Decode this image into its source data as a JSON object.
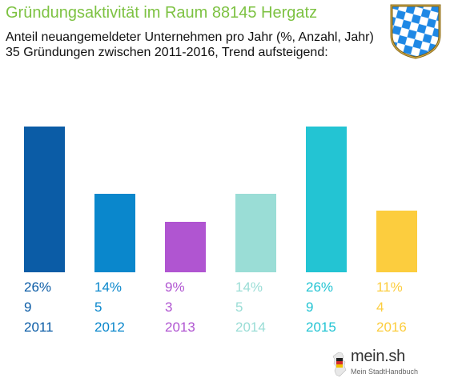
{
  "header": {
    "title": "Gründungsaktivität im Raum 88145 Hergatz",
    "subtitle_line1": "Anteil neuangemeldeter Unternehmen pro Jahr (%, Anzahl, Jahr)",
    "subtitle_line2": "35 Gründungen zwischen 2011-2016, Trend aufsteigend:"
  },
  "crest": {
    "icon": "bavaria-crest-icon"
  },
  "logo": {
    "name": "mein.sh",
    "tagline": "Mein StadtHandbuch",
    "icon": "germany-map-pin-icon"
  },
  "chart_data": {
    "type": "bar",
    "categories": [
      "2011",
      "2012",
      "2013",
      "2014",
      "2015",
      "2016"
    ],
    "values": [
      26,
      14,
      9,
      14,
      26,
      11
    ],
    "percent_labels": [
      "26%",
      "14%",
      "9%",
      "14%",
      "26%",
      "11%"
    ],
    "counts": [
      9,
      5,
      3,
      5,
      9,
      4
    ],
    "colors": [
      "#0b5ca6",
      "#0a87cc",
      "#b055d1",
      "#9addd6",
      "#23c4d3",
      "#fccd3e"
    ],
    "ylim": [
      0,
      26
    ],
    "grid": false,
    "legend": "none"
  }
}
